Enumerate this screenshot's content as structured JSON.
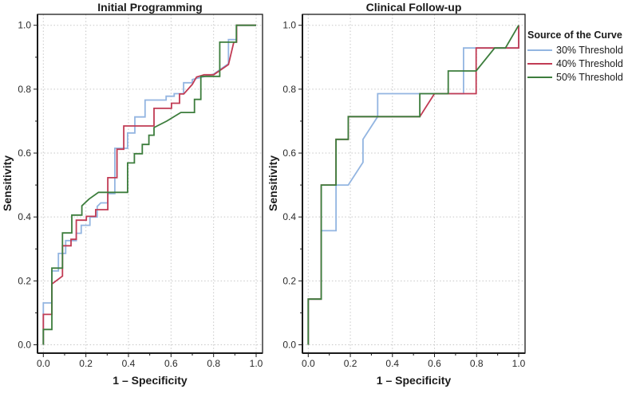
{
  "legend": {
    "title": "Source of the Curve",
    "items": [
      {
        "label": "30% Threshold",
        "color": "#93b5e1"
      },
      {
        "label": "40% Threshold",
        "color": "#c13b54"
      },
      {
        "label": "50% Threshold",
        "color": "#3c7d3c"
      }
    ]
  },
  "chart_data": [
    {
      "type": "line",
      "subtype": "roc-step-curves",
      "title": "Initial Programming",
      "xlabel": "1 – Specificity",
      "ylabel": "Sensitivity",
      "xlim": [
        0,
        1
      ],
      "ylim": [
        0,
        1
      ],
      "grid": "dashed",
      "legend_position": "outside-right-of-second-plot",
      "ticks": {
        "labels": [
          "0.0",
          "0.2",
          "0.4",
          "0.6",
          "0.8",
          "1.0"
        ],
        "values": [
          0,
          0.2,
          0.4,
          0.6,
          0.8,
          1.0
        ],
        "minor_step": 0.1
      },
      "series": [
        {
          "name": "30% Threshold",
          "color": "#93b5e1",
          "points": [
            [
              0,
              0
            ],
            [
              0,
              0.131
            ],
            [
              0.04,
              0.131
            ],
            [
              0.04,
              0.231
            ],
            [
              0.071,
              0.231
            ],
            [
              0.071,
              0.286
            ],
            [
              0.105,
              0.286
            ],
            [
              0.105,
              0.326
            ],
            [
              0.155,
              0.326
            ],
            [
              0.155,
              0.349
            ],
            [
              0.178,
              0.349
            ],
            [
              0.178,
              0.374
            ],
            [
              0.219,
              0.374
            ],
            [
              0.219,
              0.4
            ],
            [
              0.253,
              0.4
            ],
            [
              0.253,
              0.433
            ],
            [
              0.27,
              0.444
            ],
            [
              0.303,
              0.444
            ],
            [
              0.303,
              0.473
            ],
            [
              0.336,
              0.473
            ],
            [
              0.336,
              0.615
            ],
            [
              0.396,
              0.615
            ],
            [
              0.396,
              0.663
            ],
            [
              0.43,
              0.663
            ],
            [
              0.43,
              0.713
            ],
            [
              0.478,
              0.713
            ],
            [
              0.478,
              0.766
            ],
            [
              0.577,
              0.766
            ],
            [
              0.577,
              0.778
            ],
            [
              0.615,
              0.778
            ],
            [
              0.615,
              0.786
            ],
            [
              0.659,
              0.786
            ],
            [
              0.659,
              0.82
            ],
            [
              0.7,
              0.82
            ],
            [
              0.7,
              0.83
            ],
            [
              0.73,
              0.835
            ],
            [
              0.8,
              0.847
            ],
            [
              0.87,
              0.88
            ],
            [
              0.87,
              0.955
            ],
            [
              0.908,
              0.955
            ],
            [
              0.908,
              1
            ],
            [
              1,
              1
            ]
          ]
        },
        {
          "name": "40% Threshold",
          "color": "#c13b54",
          "points": [
            [
              0,
              0
            ],
            [
              0,
              0.095
            ],
            [
              0.04,
              0.095
            ],
            [
              0.04,
              0.19
            ],
            [
              0.09,
              0.215
            ],
            [
              0.09,
              0.31
            ],
            [
              0.13,
              0.31
            ],
            [
              0.13,
              0.33
            ],
            [
              0.155,
              0.33
            ],
            [
              0.155,
              0.39
            ],
            [
              0.202,
              0.39
            ],
            [
              0.202,
              0.402
            ],
            [
              0.246,
              0.402
            ],
            [
              0.246,
              0.423
            ],
            [
              0.303,
              0.423
            ],
            [
              0.303,
              0.523
            ],
            [
              0.346,
              0.523
            ],
            [
              0.346,
              0.612
            ],
            [
              0.378,
              0.612
            ],
            [
              0.378,
              0.685
            ],
            [
              0.52,
              0.685
            ],
            [
              0.52,
              0.74
            ],
            [
              0.602,
              0.74
            ],
            [
              0.602,
              0.756
            ],
            [
              0.64,
              0.756
            ],
            [
              0.64,
              0.785
            ],
            [
              0.66,
              0.785
            ],
            [
              0.7,
              0.815
            ],
            [
              0.72,
              0.838
            ],
            [
              0.755,
              0.845
            ],
            [
              0.8,
              0.845
            ],
            [
              0.87,
              0.877
            ],
            [
              0.895,
              0.947
            ],
            [
              0.908,
              0.947
            ],
            [
              0.908,
              1
            ],
            [
              1,
              1
            ]
          ]
        },
        {
          "name": "50% Threshold",
          "color": "#3c7d3c",
          "points": [
            [
              0,
              0
            ],
            [
              0,
              0.048
            ],
            [
              0.04,
              0.048
            ],
            [
              0.04,
              0.24
            ],
            [
              0.09,
              0.24
            ],
            [
              0.09,
              0.35
            ],
            [
              0.134,
              0.35
            ],
            [
              0.134,
              0.406
            ],
            [
              0.181,
              0.406
            ],
            [
              0.181,
              0.435
            ],
            [
              0.215,
              0.456
            ],
            [
              0.259,
              0.477
            ],
            [
              0.396,
              0.477
            ],
            [
              0.396,
              0.569
            ],
            [
              0.428,
              0.569
            ],
            [
              0.428,
              0.598
            ],
            [
              0.465,
              0.598
            ],
            [
              0.465,
              0.627
            ],
            [
              0.496,
              0.627
            ],
            [
              0.496,
              0.656
            ],
            [
              0.52,
              0.656
            ],
            [
              0.52,
              0.68
            ],
            [
              0.58,
              0.7
            ],
            [
              0.646,
              0.727
            ],
            [
              0.71,
              0.727
            ],
            [
              0.71,
              0.768
            ],
            [
              0.74,
              0.768
            ],
            [
              0.74,
              0.84
            ],
            [
              0.829,
              0.84
            ],
            [
              0.829,
              0.947
            ],
            [
              0.907,
              0.947
            ],
            [
              0.907,
              1
            ],
            [
              1,
              1
            ]
          ]
        }
      ]
    },
    {
      "type": "line",
      "subtype": "roc-step-curves",
      "title": "Clinical Follow-up",
      "xlabel": "1 – Specificity",
      "ylabel": "Sensitivity",
      "xlim": [
        0,
        1
      ],
      "ylim": [
        0,
        1
      ],
      "grid": "dashed",
      "ticks": {
        "labels": [
          "0.0",
          "0.2",
          "0.4",
          "0.6",
          "0.8",
          "1.0"
        ],
        "values": [
          0,
          0.2,
          0.4,
          0.6,
          0.8,
          1.0
        ],
        "minor_step": 0.1
      },
      "series": [
        {
          "name": "30% Threshold",
          "color": "#93b5e1",
          "points": [
            [
              0,
              0
            ],
            [
              0,
              0.143
            ],
            [
              0.062,
              0.143
            ],
            [
              0.062,
              0.357
            ],
            [
              0.132,
              0.357
            ],
            [
              0.132,
              0.5
            ],
            [
              0.19,
              0.5
            ],
            [
              0.26,
              0.571
            ],
            [
              0.26,
              0.643
            ],
            [
              0.33,
              0.714
            ],
            [
              0.33,
              0.786
            ],
            [
              0.738,
              0.786
            ],
            [
              0.738,
              0.929
            ],
            [
              0.8,
              0.929
            ],
            [
              1,
              0.929
            ],
            [
              1,
              1
            ]
          ]
        },
        {
          "name": "40% Threshold",
          "color": "#c13b54",
          "points": [
            [
              0,
              0
            ],
            [
              0,
              0.143
            ],
            [
              0.062,
              0.143
            ],
            [
              0.062,
              0.5
            ],
            [
              0.132,
              0.5
            ],
            [
              0.132,
              0.643
            ],
            [
              0.19,
              0.643
            ],
            [
              0.19,
              0.714
            ],
            [
              0.53,
              0.714
            ],
            [
              0.6,
              0.786
            ],
            [
              0.798,
              0.786
            ],
            [
              0.798,
              0.929
            ],
            [
              1,
              0.929
            ],
            [
              1,
              1
            ]
          ]
        },
        {
          "name": "50% Threshold",
          "color": "#3c7d3c",
          "points": [
            [
              0,
              0
            ],
            [
              0,
              0.143
            ],
            [
              0.062,
              0.143
            ],
            [
              0.062,
              0.5
            ],
            [
              0.132,
              0.5
            ],
            [
              0.132,
              0.643
            ],
            [
              0.19,
              0.643
            ],
            [
              0.19,
              0.714
            ],
            [
              0.53,
              0.714
            ],
            [
              0.53,
              0.786
            ],
            [
              0.665,
              0.786
            ],
            [
              0.665,
              0.857
            ],
            [
              0.798,
              0.857
            ],
            [
              0.886,
              0.929
            ],
            [
              0.937,
              0.929
            ],
            [
              1,
              1
            ]
          ]
        }
      ]
    }
  ]
}
